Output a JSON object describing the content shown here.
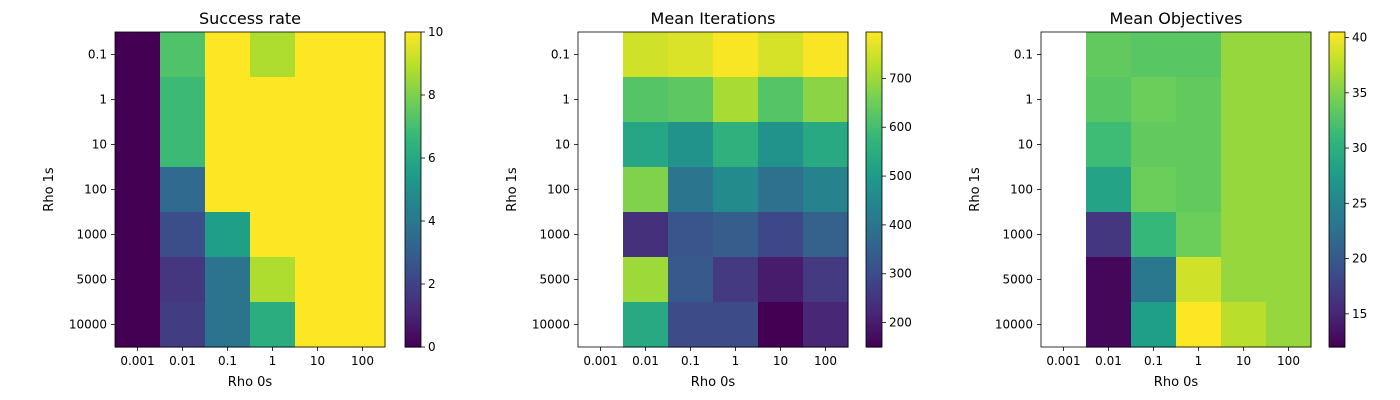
{
  "chart_data": [
    {
      "type": "heatmap",
      "title": "Success rate",
      "xlabel": "Rho 0s",
      "ylabel": "Rho 1s",
      "x_categories": [
        "0.001",
        "0.01",
        "0.1",
        "1",
        "10",
        "100"
      ],
      "y_categories": [
        "0.1",
        "1",
        "10",
        "100",
        "1000",
        "5000",
        "10000"
      ],
      "values": [
        [
          0,
          7.2,
          10,
          8.8,
          10,
          10
        ],
        [
          0,
          6.8,
          10,
          10,
          10,
          10
        ],
        [
          0,
          6.8,
          10,
          10,
          10,
          10
        ],
        [
          0,
          3.4,
          10,
          10,
          10,
          10
        ],
        [
          0,
          2.4,
          5.6,
          10,
          10,
          10
        ],
        [
          0,
          1.6,
          3.8,
          8.8,
          10,
          10
        ],
        [
          0,
          1.8,
          3.8,
          6.2,
          10,
          10
        ]
      ],
      "colorbar": {
        "min": 0,
        "max": 10,
        "ticks": [
          "0",
          "2",
          "4",
          "6",
          "8",
          "10"
        ]
      },
      "colormap": "viridis"
    },
    {
      "type": "heatmap",
      "title": "Mean Iterations",
      "xlabel": "Rho 0s",
      "ylabel": "Rho 1s",
      "x_categories": [
        "0.001",
        "0.01",
        "0.1",
        "1",
        "10",
        "100"
      ],
      "y_categories": [
        "0.1",
        "1",
        "10",
        "100",
        "1000",
        "5000",
        "10000"
      ],
      "values": [
        [
          null,
          750,
          760,
          790,
          755,
          790
        ],
        [
          null,
          620,
          630,
          710,
          620,
          680
        ],
        [
          null,
          530,
          480,
          560,
          480,
          540
        ],
        [
          null,
          670,
          400,
          460,
          390,
          440
        ],
        [
          null,
          240,
          320,
          340,
          290,
          350
        ],
        [
          null,
          700,
          330,
          260,
          200,
          260
        ],
        [
          null,
          540,
          300,
          300,
          150,
          220
        ]
      ],
      "colorbar": {
        "min": 150,
        "max": 795,
        "ticks": [
          "200",
          "300",
          "400",
          "500",
          "600",
          "700"
        ]
      },
      "colormap": "viridis"
    },
    {
      "type": "heatmap",
      "title": "Mean Objectives",
      "xlabel": "Rho 0s",
      "ylabel": "Rho 1s",
      "x_categories": [
        "0.001",
        "0.01",
        "0.1",
        "1",
        "10",
        "100"
      ],
      "y_categories": [
        "0.1",
        "1",
        "10",
        "100",
        "1000",
        "5000",
        "10000"
      ],
      "values": [
        [
          null,
          33.5,
          33,
          33,
          36,
          36
        ],
        [
          null,
          33,
          34,
          33.5,
          36,
          36
        ],
        [
          null,
          31.5,
          33.5,
          33.5,
          36,
          36
        ],
        [
          null,
          28.5,
          34,
          33.5,
          36,
          36
        ],
        [
          null,
          16.5,
          31,
          34,
          36,
          36
        ],
        [
          null,
          12.5,
          23.5,
          38.5,
          36,
          36
        ],
        [
          null,
          12.5,
          28,
          40.5,
          37.5,
          36
        ]
      ],
      "colorbar": {
        "min": 12,
        "max": 40.5,
        "ticks": [
          "15",
          "20",
          "25",
          "30",
          "35",
          "40"
        ]
      },
      "colormap": "viridis"
    }
  ]
}
